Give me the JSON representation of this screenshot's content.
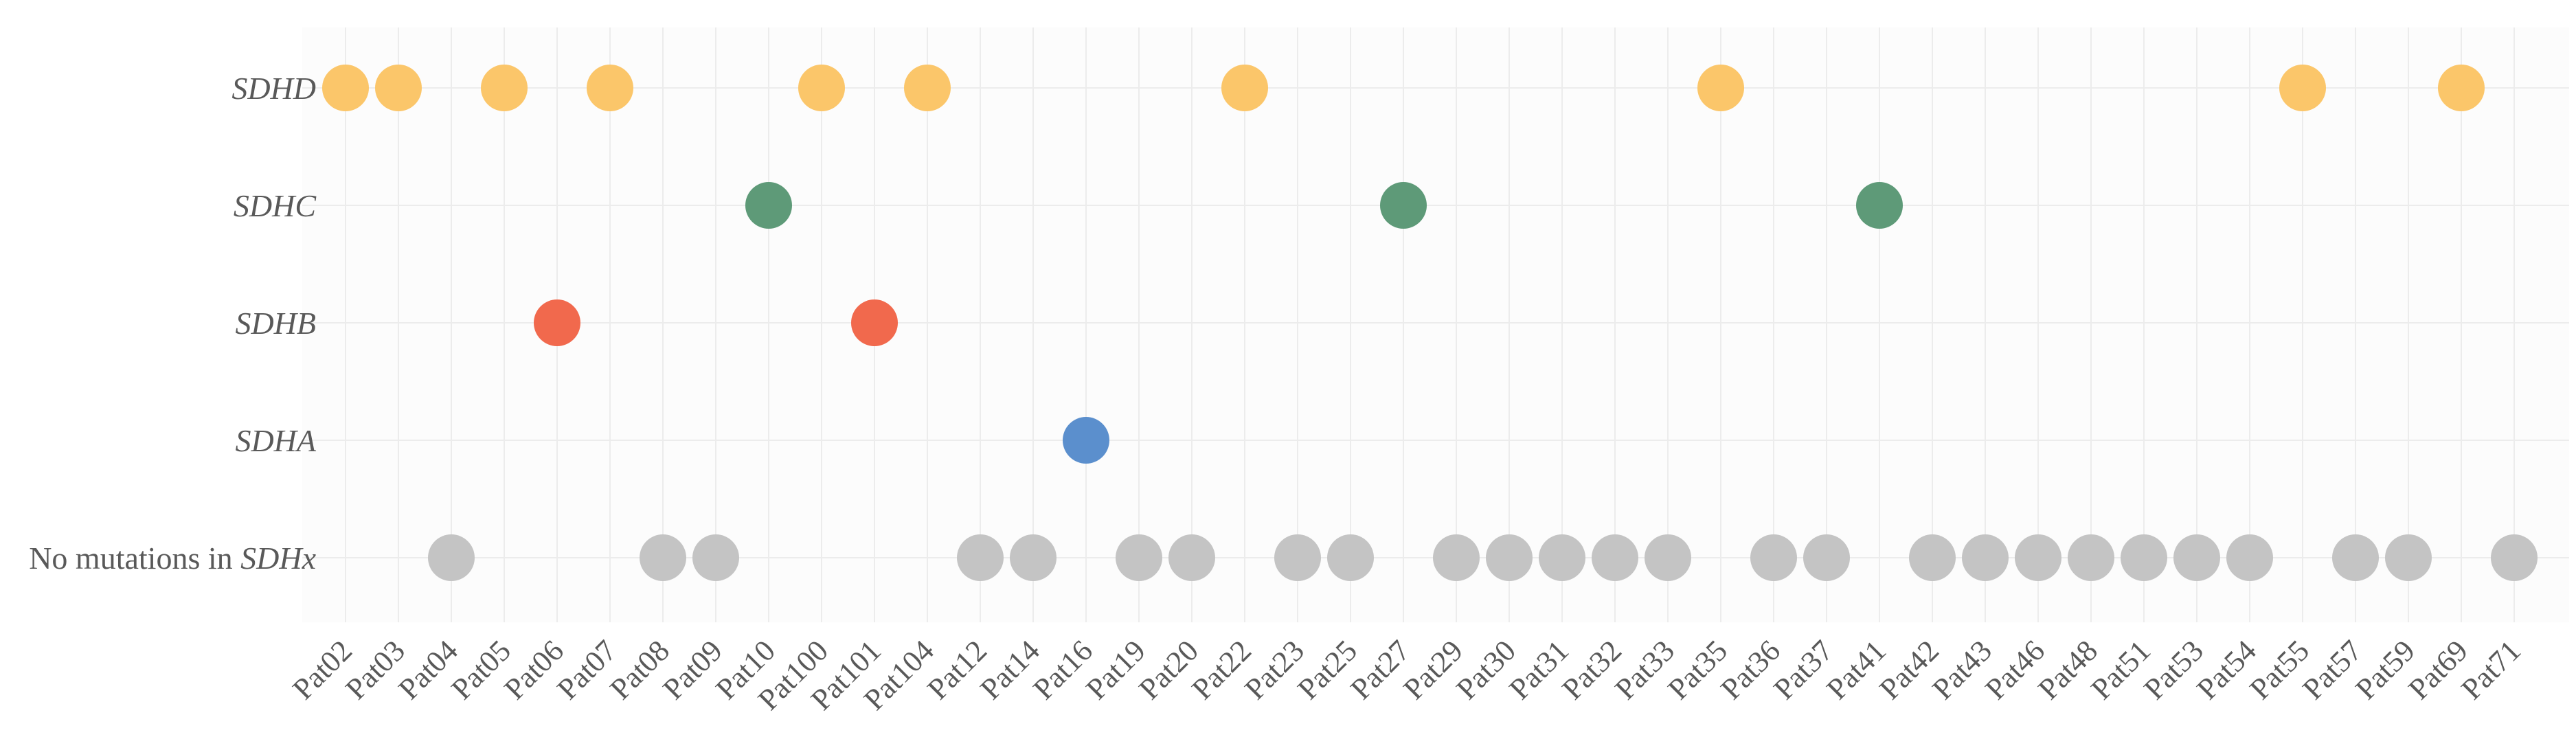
{
  "chart_data": {
    "type": "scatter",
    "title": "",
    "xlabel": "",
    "ylabel": "",
    "grid": true,
    "legend": "none",
    "categories": [
      "Pat02",
      "Pat03",
      "Pat04",
      "Pat05",
      "Pat06",
      "Pat07",
      "Pat08",
      "Pat09",
      "Pat10",
      "Pat100",
      "Pat101",
      "Pat104",
      "Pat12",
      "Pat14",
      "Pat16",
      "Pat19",
      "Pat20",
      "Pat22",
      "Pat23",
      "Pat25",
      "Pat27",
      "Pat29",
      "Pat30",
      "Pat31",
      "Pat32",
      "Pat33",
      "Pat35",
      "Pat36",
      "Pat37",
      "Pat41",
      "Pat42",
      "Pat43",
      "Pat46",
      "Pat48",
      "Pat51",
      "Pat53",
      "Pat54",
      "Pat55",
      "Pat57",
      "Pat59",
      "Pat69",
      "Pat71"
    ],
    "rows": [
      {
        "key": "SDHD",
        "label_prefix": "",
        "label_italic": "SDHD"
      },
      {
        "key": "SDHC",
        "label_prefix": "",
        "label_italic": "SDHC"
      },
      {
        "key": "SDHB",
        "label_prefix": "",
        "label_italic": "SDHB"
      },
      {
        "key": "SDHA",
        "label_prefix": "",
        "label_italic": "SDHA"
      },
      {
        "key": "none",
        "label_prefix": "No mutations in ",
        "label_italic": "SDHx"
      }
    ],
    "colors": {
      "SDHD": "#FBC66A",
      "SDHC": "#5E9A78",
      "SDHB": "#F1694D",
      "SDHA": "#5B8FCD",
      "none": "#C4C4C4"
    },
    "points": [
      {
        "x": 0.0,
        "row": "SDHD"
      },
      {
        "x": 1.0,
        "row": "SDHD"
      },
      {
        "x": 3.0,
        "row": "SDHD"
      },
      {
        "x": 5.0,
        "row": "SDHD"
      },
      {
        "x": 9.0,
        "row": "SDHD"
      },
      {
        "x": 11.0,
        "row": "SDHD"
      },
      {
        "x": 17.0,
        "row": "SDHD"
      },
      {
        "x": 26.0,
        "row": "SDHD"
      },
      {
        "x": 37.0,
        "row": "SDHD"
      },
      {
        "x": 40.0,
        "row": "SDHD"
      },
      {
        "x": 8.0,
        "row": "SDHC"
      },
      {
        "x": 20.0,
        "row": "SDHC"
      },
      {
        "x": 29.0,
        "row": "SDHC"
      },
      {
        "x": 4.0,
        "row": "SDHB"
      },
      {
        "x": 10.0,
        "row": "SDHB"
      },
      {
        "x": 14.0,
        "row": "SDHA"
      },
      {
        "x": 2.0,
        "row": "none"
      },
      {
        "x": 6.0,
        "row": "none"
      },
      {
        "x": 7.0,
        "row": "none"
      },
      {
        "x": 12.0,
        "row": "none"
      },
      {
        "x": 13.0,
        "row": "none"
      },
      {
        "x": 15.0,
        "row": "none"
      },
      {
        "x": 16.0,
        "row": "none"
      },
      {
        "x": 18.0,
        "row": "none"
      },
      {
        "x": 19.0,
        "row": "none"
      },
      {
        "x": 21.0,
        "row": "none"
      },
      {
        "x": 22.0,
        "row": "none"
      },
      {
        "x": 23.0,
        "row": "none"
      },
      {
        "x": 24.0,
        "row": "none"
      },
      {
        "x": 25.0,
        "row": "none"
      },
      {
        "x": 27.0,
        "row": "none"
      },
      {
        "x": 28.0,
        "row": "none"
      },
      {
        "x": 30.0,
        "row": "none"
      },
      {
        "x": 31.0,
        "row": "none"
      },
      {
        "x": 32.0,
        "row": "none"
      },
      {
        "x": 33.0,
        "row": "none"
      },
      {
        "x": 34.0,
        "row": "none"
      },
      {
        "x": 35.0,
        "row": "none"
      },
      {
        "x": 36.0,
        "row": "none"
      },
      {
        "x": 38.0,
        "row": "none"
      },
      {
        "x": 39.0,
        "row": "none"
      },
      {
        "x": 41.0,
        "row": "none"
      }
    ]
  }
}
